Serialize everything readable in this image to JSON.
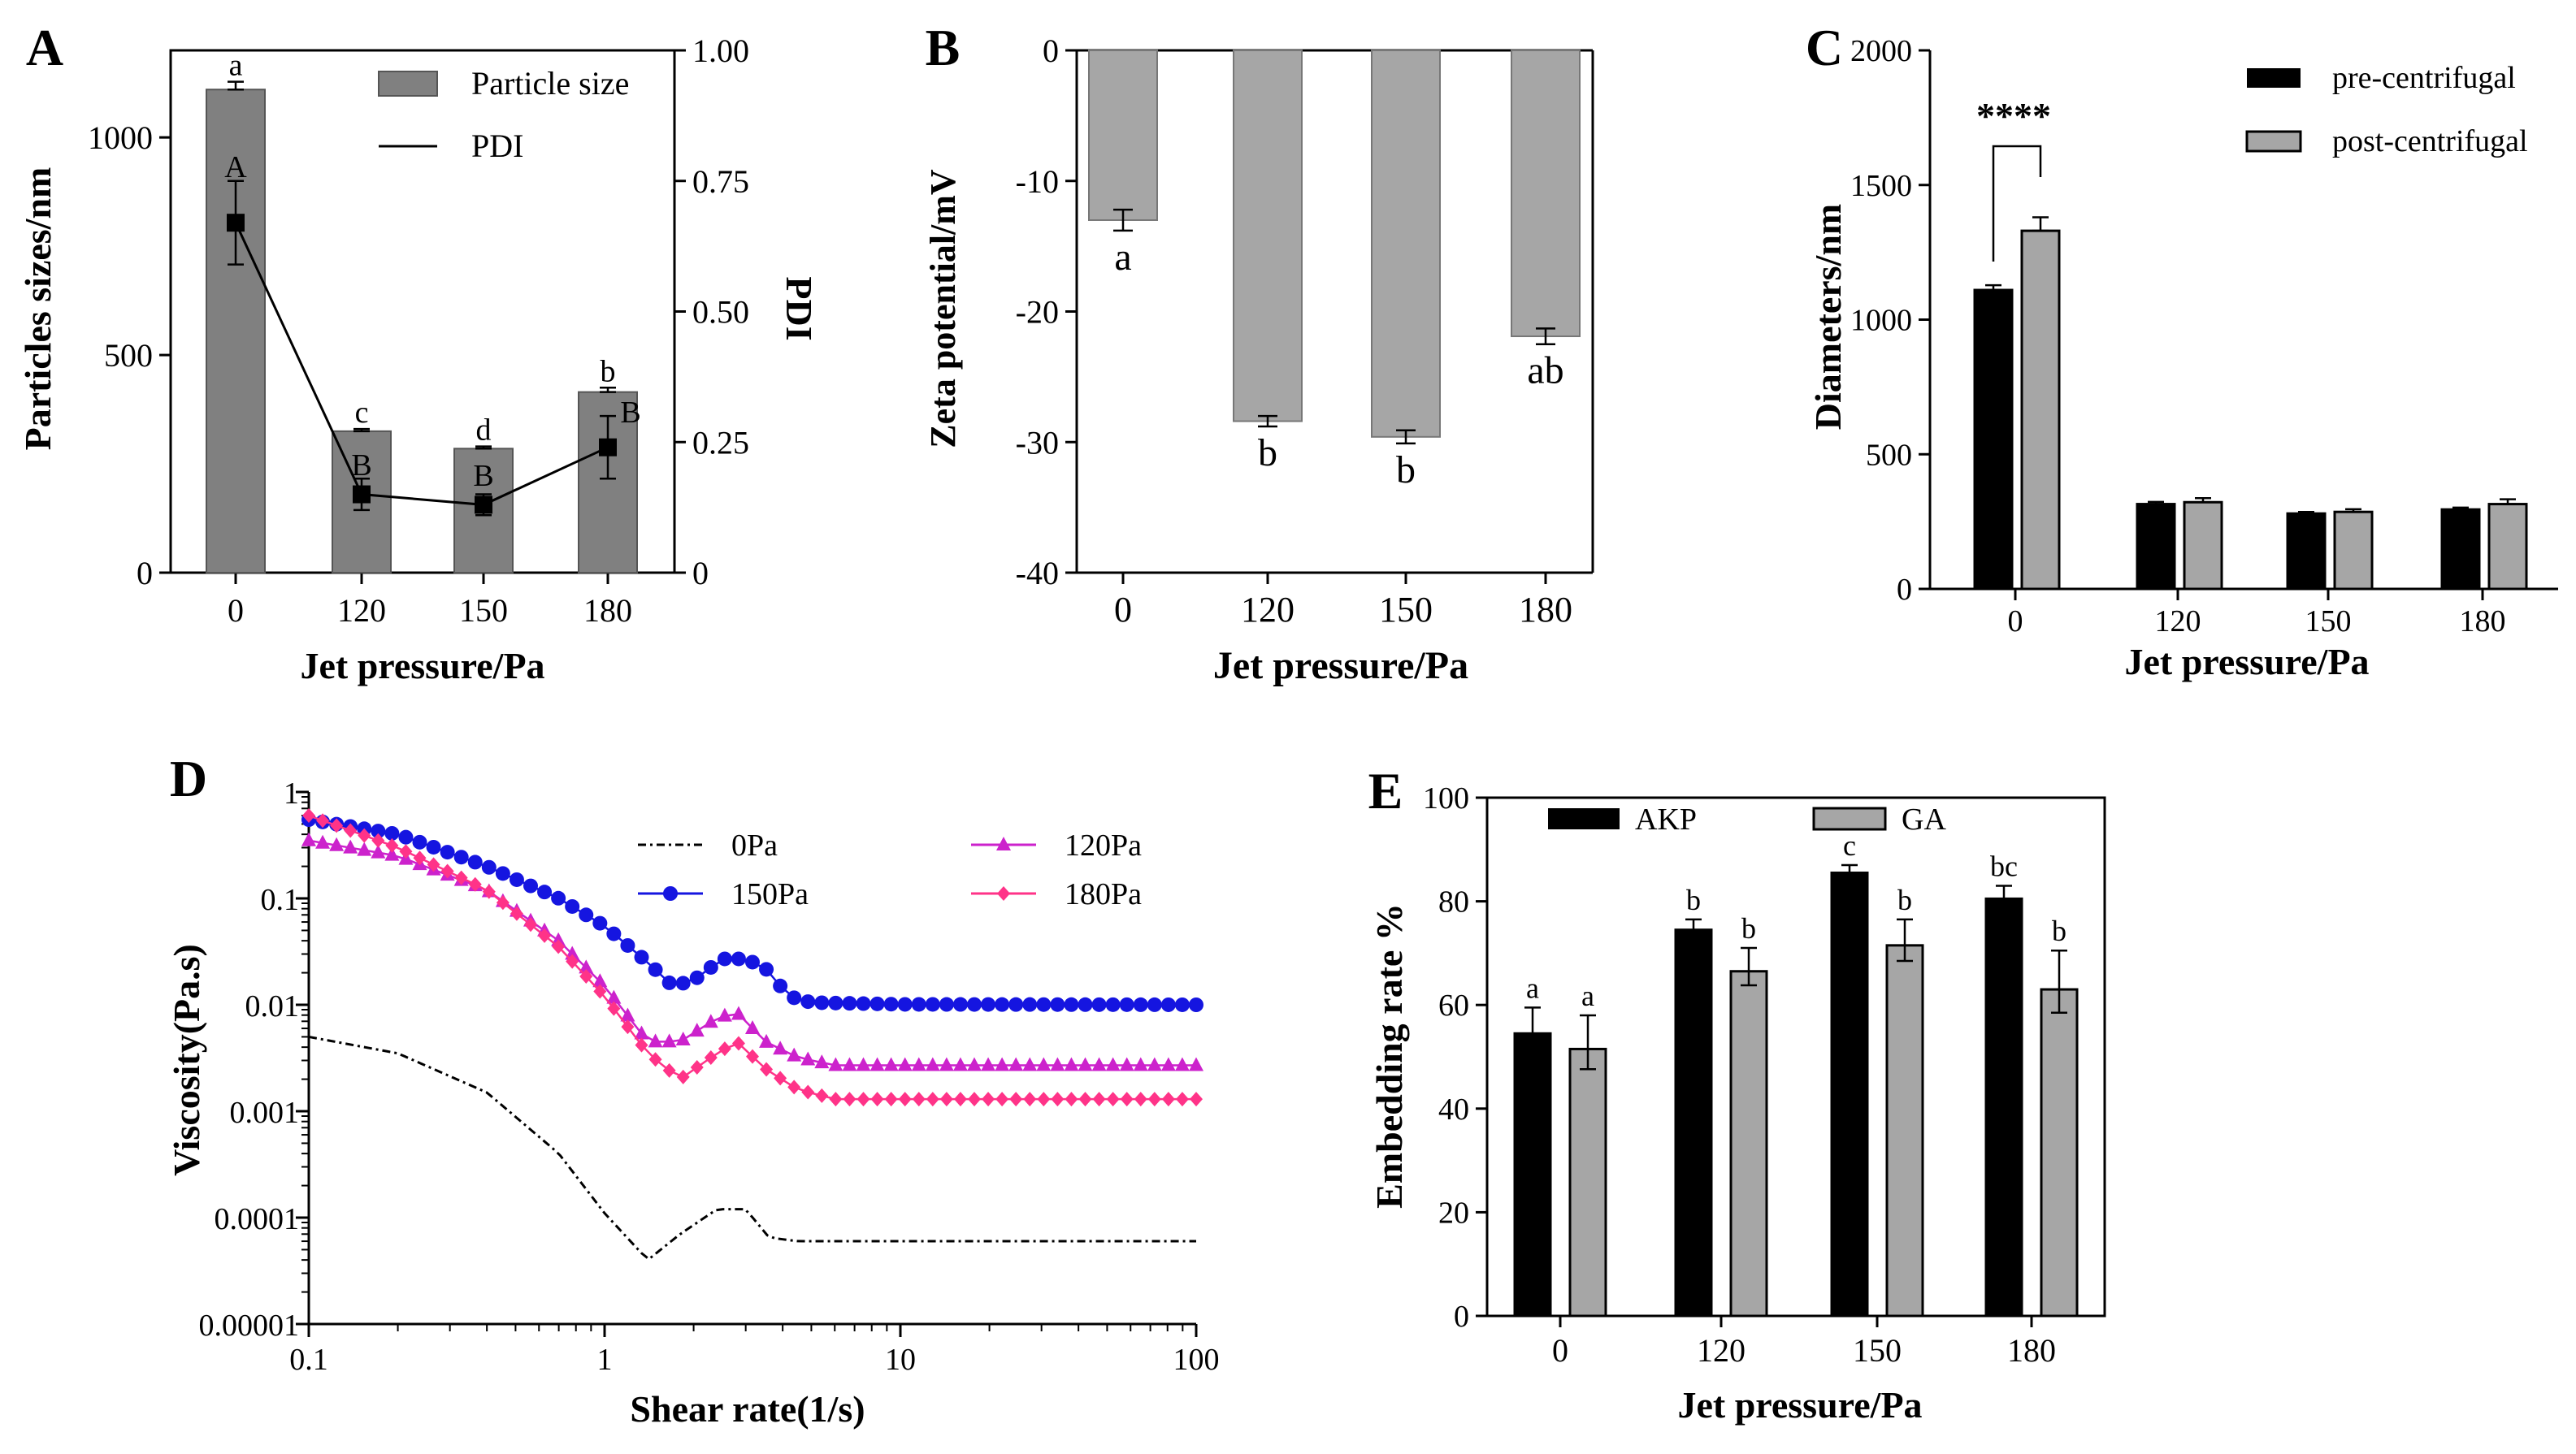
{
  "chart_data": [
    {
      "panel": "A",
      "type": "bar",
      "categories": [
        "0",
        "120",
        "150",
        "180"
      ],
      "xlabel": "Jet pressure/Pa",
      "ylabel": "Particles sizes/nm",
      "ylim": [
        0,
        1200
      ],
      "yticks": [
        "0",
        "500",
        "1000"
      ],
      "y2label": "PDI",
      "y2lim": [
        0,
        1.0
      ],
      "y2ticks": [
        "0",
        "0.25",
        "0.50",
        "0.75",
        "1.00"
      ],
      "legend": [
        "Particle size",
        "PDI"
      ],
      "series": [
        {
          "name": "Particle size",
          "axis": "left",
          "values": [
            1110,
            325,
            285,
            415
          ],
          "errors": [
            18,
            5,
            5,
            10
          ],
          "letters": [
            "a",
            "c",
            "d",
            "b"
          ]
        },
        {
          "name": "PDI",
          "axis": "right",
          "values": [
            0.67,
            0.15,
            0.13,
            0.24
          ],
          "errors": [
            0.08,
            0.03,
            0.02,
            0.06
          ],
          "letters": [
            "A",
            "B",
            "B",
            "B"
          ]
        }
      ]
    },
    {
      "panel": "B",
      "type": "bar",
      "categories": [
        "0",
        "120",
        "150",
        "180"
      ],
      "xlabel": "Jet pressure/Pa",
      "ylabel": "Zeta potential/mV",
      "ylim": [
        -40,
        0
      ],
      "yticks": [
        "0",
        "-10",
        "-20",
        "-30",
        "-40"
      ],
      "series": [
        {
          "name": "Zeta potential",
          "values": [
            -13.0,
            -28.4,
            -29.6,
            -21.9
          ],
          "errors": [
            0.8,
            0.4,
            0.5,
            0.6
          ],
          "letters": [
            "a",
            "b",
            "b",
            "ab"
          ]
        }
      ]
    },
    {
      "panel": "C",
      "type": "bar",
      "categories": [
        "0",
        "120",
        "150",
        "180"
      ],
      "xlabel": "Jet pressure/Pa",
      "ylabel": "Diameters/nm",
      "ylim": [
        0,
        2000
      ],
      "yticks": [
        "0",
        "500",
        "1000",
        "1500",
        "2000"
      ],
      "legend": [
        "pre-centrifugal",
        "post-centrifugal"
      ],
      "significance": "****",
      "series": [
        {
          "name": "pre-centrifugal",
          "values": [
            1110,
            315,
            280,
            295
          ],
          "errors": [
            18,
            8,
            6,
            7
          ]
        },
        {
          "name": "post-centrifugal",
          "values": [
            1330,
            322,
            286,
            315
          ],
          "errors": [
            50,
            15,
            10,
            18
          ]
        }
      ]
    },
    {
      "panel": "D",
      "type": "line",
      "xlabel": "Shear rate(1/s)",
      "ylabel": "Viscosity(Pa.s)",
      "xscale": "log",
      "yscale": "log",
      "xlim": [
        0.1,
        100
      ],
      "ylim": [
        1e-05,
        1
      ],
      "xticks": [
        "0.1",
        "1",
        "10",
        "100"
      ],
      "yticks": [
        "0.00001",
        "0.0001",
        "0.001",
        "0.01",
        "0.1",
        "1"
      ],
      "legend": [
        "0Pa",
        "120Pa",
        "150Pa",
        "180Pa"
      ],
      "series": [
        {
          "name": "0Pa",
          "color": "#000000",
          "marker": "dot-dash",
          "x": [
            0.1,
            0.2,
            0.4,
            0.7,
            1.0,
            1.4,
            1.8,
            2.4,
            3.0,
            3.6,
            4.5,
            10,
            100
          ],
          "y": [
            0.005,
            0.0035,
            0.0015,
            0.0004,
            0.00011,
            4e-05,
            7e-05,
            0.00012,
            0.00012,
            6.5e-05,
            6e-05,
            6e-05,
            6e-05
          ]
        },
        {
          "name": "120Pa",
          "color": "#cc22cc",
          "marker": "triangle",
          "x": [
            0.1,
            0.2,
            0.4,
            0.7,
            1.0,
            1.4,
            1.8,
            2.4,
            2.8,
            3.5,
            4.5,
            6,
            10,
            100
          ],
          "y": [
            0.35,
            0.25,
            0.12,
            0.04,
            0.015,
            0.0045,
            0.0045,
            0.0075,
            0.0085,
            0.0045,
            0.0032,
            0.0027,
            0.0027,
            0.0027
          ]
        },
        {
          "name": "150Pa",
          "color": "#1515e0",
          "marker": "circle",
          "x": [
            0.1,
            0.2,
            0.4,
            0.7,
            1.0,
            1.4,
            1.7,
            2.0,
            2.5,
            3.0,
            3.5,
            4.2,
            5,
            10,
            100
          ],
          "y": [
            0.55,
            0.4,
            0.2,
            0.1,
            0.055,
            0.025,
            0.015,
            0.017,
            0.027,
            0.027,
            0.022,
            0.012,
            0.0105,
            0.0101,
            0.01
          ]
        },
        {
          "name": "180Pa",
          "color": "#ff3388",
          "marker": "diamond",
          "x": [
            0.1,
            0.2,
            0.4,
            0.7,
            1.0,
            1.4,
            1.8,
            2.4,
            2.8,
            3.5,
            4.5,
            6,
            10,
            100
          ],
          "y": [
            0.6,
            0.3,
            0.12,
            0.035,
            0.012,
            0.0035,
            0.002,
            0.0035,
            0.0045,
            0.0025,
            0.0016,
            0.0013,
            0.0013,
            0.0013
          ]
        }
      ]
    },
    {
      "panel": "E",
      "type": "bar",
      "categories": [
        "0",
        "120",
        "150",
        "180"
      ],
      "xlabel": "Jet pressure/Pa",
      "ylabel": "Embedding rate %",
      "ylim": [
        0,
        100
      ],
      "yticks": [
        "0",
        "20",
        "40",
        "60",
        "80",
        "100"
      ],
      "legend": [
        "AKP",
        "GA"
      ],
      "series": [
        {
          "name": "AKP",
          "values": [
            54.5,
            74.5,
            85.5,
            80.5
          ],
          "errors": [
            5.0,
            2.0,
            1.5,
            2.5
          ],
          "letters": [
            "a",
            "b",
            "c",
            "bc"
          ]
        },
        {
          "name": "GA",
          "values": [
            51.5,
            66.5,
            71.5,
            63.0
          ],
          "errors": [
            6.5,
            4.5,
            5.0,
            7.5
          ],
          "letters": [
            "a",
            "b",
            "b",
            "b"
          ]
        }
      ]
    }
  ]
}
